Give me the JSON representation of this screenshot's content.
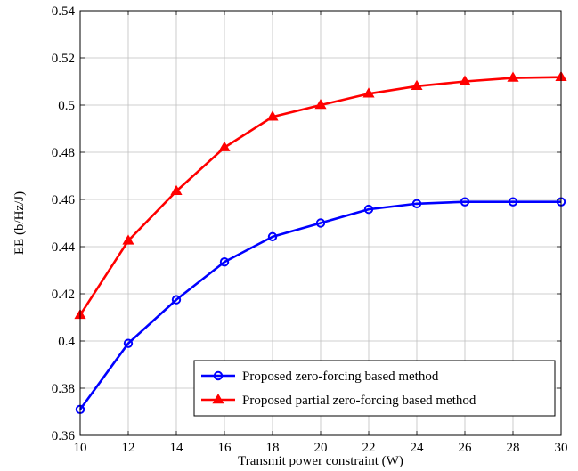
{
  "chart_data": {
    "type": "line",
    "xlabel": "Transmit power constraint (W)",
    "ylabel": "EE (b/Hz/J)",
    "xlim": [
      10,
      30
    ],
    "ylim": [
      0.36,
      0.54
    ],
    "xticks": [
      10,
      12,
      14,
      16,
      18,
      20,
      22,
      24,
      26,
      28,
      30
    ],
    "yticks": [
      0.36,
      0.38,
      0.4,
      0.42,
      0.44,
      0.46,
      0.48,
      0.5,
      0.52,
      0.54
    ],
    "xtick_labels": [
      "10",
      "12",
      "14",
      "16",
      "18",
      "20",
      "22",
      "24",
      "26",
      "28",
      "30"
    ],
    "ytick_labels": [
      "0.36",
      "0.38",
      "0.4",
      "0.42",
      "0.44",
      "0.46",
      "0.48",
      "0.5",
      "0.52",
      "0.54"
    ],
    "grid": true,
    "legend_position": "bottom-right",
    "x": [
      10,
      12,
      14,
      16,
      18,
      20,
      22,
      24,
      26,
      28,
      30
    ],
    "series": [
      {
        "name": "Proposed zero-forcing based method",
        "color": "#0000ff",
        "marker": "circle",
        "values": [
          0.371,
          0.399,
          0.4175,
          0.4335,
          0.4442,
          0.45,
          0.4558,
          0.4582,
          0.459,
          0.459,
          0.459
        ]
      },
      {
        "name": "Proposed partial zero-forcing based method",
        "color": "#ff0000",
        "marker": "triangle",
        "values": [
          0.411,
          0.4425,
          0.4635,
          0.482,
          0.495,
          0.5,
          0.5048,
          0.508,
          0.51,
          0.5115,
          0.5118
        ]
      }
    ]
  }
}
